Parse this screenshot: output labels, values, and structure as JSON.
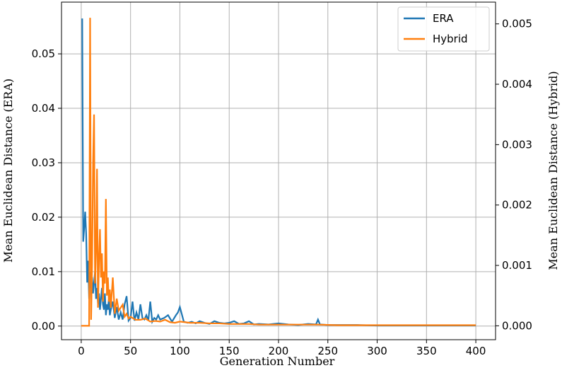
{
  "chart_data": {
    "type": "line",
    "title": "",
    "xlabel": "Generation Number",
    "ylabel_left": "Mean Euclidean Distance (ERA)",
    "ylabel_right": "Mean Euclidean Distance (Hybrid)",
    "xlim": [
      -20,
      420
    ],
    "ylim_left": [
      -0.0025,
      0.0595
    ],
    "ylim_right": [
      -0.00023,
      0.00536
    ],
    "xticks": [
      0,
      50,
      100,
      150,
      200,
      250,
      300,
      350,
      400
    ],
    "yticks_left": [
      0.0,
      0.01,
      0.02,
      0.03,
      0.04,
      0.05
    ],
    "yticks_right": [
      0.0,
      0.001,
      0.002,
      0.003,
      0.004,
      0.005
    ],
    "xtick_labels": [
      "0",
      "50",
      "100",
      "150",
      "200",
      "250",
      "300",
      "350",
      "400"
    ],
    "ytick_labels_left": [
      "0.00",
      "0.01",
      "0.02",
      "0.03",
      "0.04",
      "0.05"
    ],
    "ytick_labels_right": [
      "0.000",
      "0.001",
      "0.002",
      "0.003",
      "0.004",
      "0.005"
    ],
    "grid": true,
    "legend_position": "top-right",
    "series": [
      {
        "name": "ERA",
        "axis": "left",
        "color": "#1f77b4",
        "x": [
          1,
          2,
          3,
          4,
          5,
          6,
          7,
          8,
          9,
          10,
          11,
          12,
          13,
          14,
          15,
          16,
          17,
          18,
          19,
          20,
          21,
          22,
          23,
          24,
          25,
          26,
          27,
          28,
          29,
          30,
          32,
          34,
          36,
          38,
          40,
          42,
          44,
          46,
          48,
          50,
          52,
          54,
          56,
          58,
          60,
          62,
          64,
          66,
          68,
          70,
          72,
          74,
          76,
          78,
          80,
          84,
          88,
          92,
          96,
          98,
          100,
          104,
          108,
          112,
          116,
          120,
          125,
          130,
          135,
          140,
          145,
          150,
          155,
          160,
          165,
          170,
          175,
          180,
          190,
          200,
          210,
          220,
          230,
          238,
          240,
          242,
          250,
          260,
          280,
          300,
          320,
          340,
          360,
          380,
          400
        ],
        "values": [
          0.0565,
          0.0155,
          0.018,
          0.021,
          0.017,
          0.008,
          0.012,
          0.005,
          0.01,
          0.007,
          0.009,
          0.006,
          0.008,
          0.01,
          0.005,
          0.007,
          0.004,
          0.006,
          0.003,
          0.005,
          0.007,
          0.004,
          0.003,
          0.006,
          0.002,
          0.004,
          0.003,
          0.005,
          0.002,
          0.003,
          0.0045,
          0.0015,
          0.0035,
          0.0012,
          0.0025,
          0.0012,
          0.004,
          0.0055,
          0.001,
          0.0015,
          0.0045,
          0.001,
          0.0025,
          0.0012,
          0.004,
          0.0015,
          0.0012,
          0.002,
          0.001,
          0.0045,
          0.0008,
          0.0015,
          0.0012,
          0.002,
          0.0012,
          0.0015,
          0.002,
          0.0008,
          0.002,
          0.0025,
          0.0035,
          0.0008,
          0.0006,
          0.0008,
          0.0005,
          0.0009,
          0.0006,
          0.0004,
          0.0009,
          0.0006,
          0.0005,
          0.0006,
          0.0009,
          0.0004,
          0.0005,
          0.0009,
          0.0003,
          0.0004,
          0.0003,
          0.0005,
          0.0003,
          0.0002,
          0.0004,
          0.0003,
          0.0012,
          0.0003,
          0.0002,
          0.0002,
          0.0002,
          0.0001,
          0.0001,
          0.0001,
          0.0001,
          0.0001,
          0.0001
        ]
      },
      {
        "name": "Hybrid",
        "axis": "right",
        "color": "#ff7f0e",
        "x": [
          0,
          5,
          8,
          9,
          10,
          11,
          12,
          13,
          14,
          15,
          16,
          17,
          18,
          19,
          20,
          21,
          22,
          23,
          24,
          25,
          26,
          27,
          28,
          29,
          30,
          32,
          34,
          36,
          38,
          40,
          42,
          44,
          46,
          48,
          50,
          55,
          60,
          65,
          70,
          75,
          80,
          85,
          90,
          95,
          100,
          110,
          120,
          130,
          140,
          150,
          160,
          170,
          180,
          190,
          200,
          220,
          240,
          260,
          280,
          300,
          320,
          340,
          360,
          380,
          400
        ],
        "values": [
          0.0,
          0.0,
          0.0,
          0.0051,
          0.0001,
          0.001,
          0.0027,
          0.0035,
          0.0007,
          0.0012,
          0.0026,
          0.0003,
          0.0011,
          0.0016,
          0.0008,
          0.0012,
          0.0004,
          0.0009,
          0.0007,
          0.0021,
          0.0005,
          0.0008,
          0.0004,
          0.0006,
          0.0003,
          0.0008,
          0.0002,
          0.00045,
          0.00025,
          0.0003,
          0.00035,
          0.00015,
          0.0002,
          0.00012,
          0.00015,
          0.0001,
          0.0001,
          0.00012,
          7e-05,
          8e-05,
          7e-05,
          0.0001,
          6e-05,
          5e-05,
          7e-05,
          5e-05,
          5e-05,
          4e-05,
          4e-05,
          3e-05,
          3e-05,
          3e-05,
          2e-05,
          2e-05,
          2e-05,
          2e-05,
          2e-05,
          1e-05,
          1e-05,
          1e-05,
          1e-05,
          1e-05,
          1e-05,
          1e-05,
          1e-05
        ]
      }
    ]
  }
}
